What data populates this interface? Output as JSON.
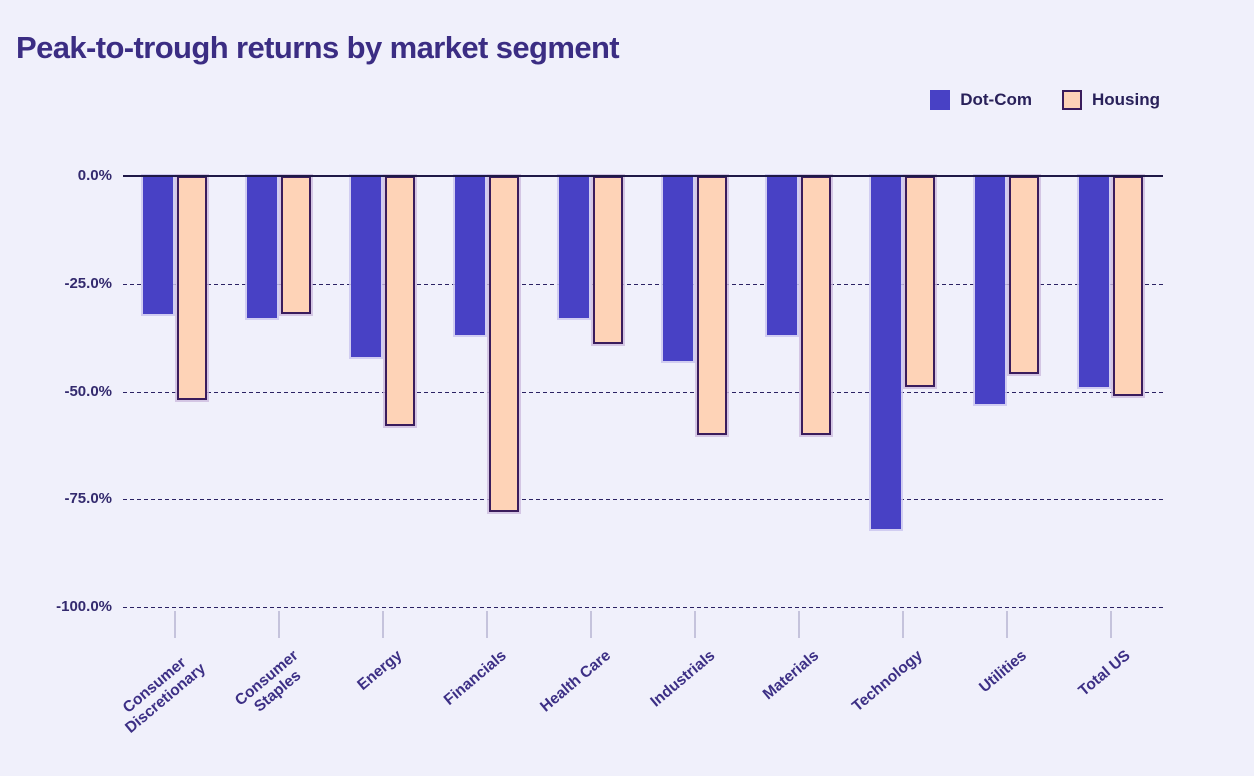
{
  "page": {
    "background_color": "#f0f0fb"
  },
  "header": {
    "title": "Peak-to-trough returns by market segment"
  },
  "legend": {
    "position": "top-right",
    "items": [
      {
        "label": "Dot-Com",
        "color": "#4841c5"
      },
      {
        "label": "Housing",
        "color": "#fed3b7",
        "border_color": "#3a1c5c"
      }
    ]
  },
  "chart_data": {
    "type": "bar",
    "orientation": "vertical-grouped",
    "title": "Peak-to-trough returns by market segment",
    "categories": [
      "Consumer\nDiscretionary",
      "Consumer\nStaples",
      "Energy",
      "Financials",
      "Health Care",
      "Industrials",
      "Materials",
      "Technology",
      "Utilities",
      "Total US"
    ],
    "series": [
      {
        "name": "Dot-Com",
        "color": "#4841c5",
        "values": [
          -32,
          -33,
          -42,
          -37,
          -33,
          -43,
          -37,
          -82,
          -53,
          -49
        ]
      },
      {
        "name": "Housing",
        "color": "#fed3b7",
        "border_color": "#3a1c5c",
        "values": [
          -52,
          -32,
          -58,
          -78,
          -39,
          -60,
          -60,
          -49,
          -46,
          -51
        ]
      }
    ],
    "value_unit": "%",
    "xlabel": "",
    "ylabel": "",
    "y_ticks": [
      "0.0%",
      "-25.0%",
      "-50.0%",
      "-75.0%",
      "-100.0%"
    ],
    "y_tick_values": [
      0,
      -25,
      -50,
      -75,
      -100
    ],
    "ylim": [
      0,
      -100
    ],
    "grid": "horizontal-dashed",
    "colors": {
      "grid_line": "#2b2264",
      "zero_line": "#1f1947",
      "axis_tick": "#c5c3dc",
      "tick_label": "#332a6e",
      "category_label": "#3c2f85",
      "title": "#3b2d83"
    }
  }
}
